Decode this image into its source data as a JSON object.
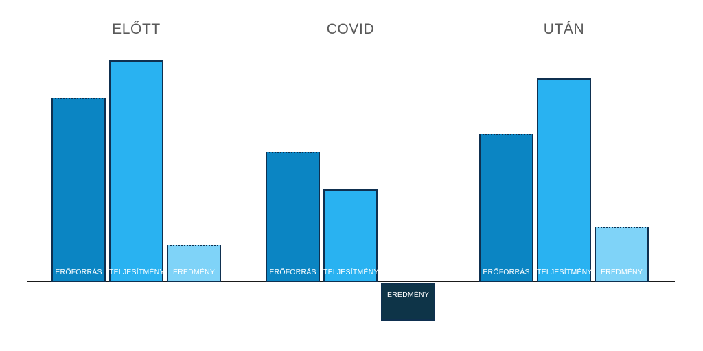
{
  "chart_data": {
    "type": "bar",
    "title": "",
    "xlabel": "",
    "ylabel": "",
    "categories": [
      "ELŐTT",
      "COVID",
      "UTÁN"
    ],
    "series": [
      {
        "name": "ERŐFORRÁS",
        "values": [
          83,
          59,
          67
        ]
      },
      {
        "name": "TELJESÍTMÉNY",
        "values": [
          100,
          42,
          92
        ]
      },
      {
        "name": "EREDMÉNY",
        "values": [
          17,
          -17,
          25
        ]
      }
    ],
    "ylim": [
      -20,
      100
    ],
    "grid": false,
    "legend_position": "none",
    "value_axis_visible": false,
    "bar_labels_position": "inside-base"
  },
  "chart_style": {
    "series_fill_colors": {
      "ERŐFORRÁS": "#0b85c3",
      "TELJESÍTMÉNY": "#29b2f1",
      "EREDMÉNY": "#7fd3f8"
    },
    "negative_fill_color": "#0e3448",
    "bar_border_color": "#0f3050",
    "dotted_top_series": [
      "ERŐFORRÁS",
      "EREDMÉNY"
    ],
    "bar_label_color": "#ffffff",
    "group_title_color": "#595959",
    "axis_line_color": "#1a1a1a"
  }
}
